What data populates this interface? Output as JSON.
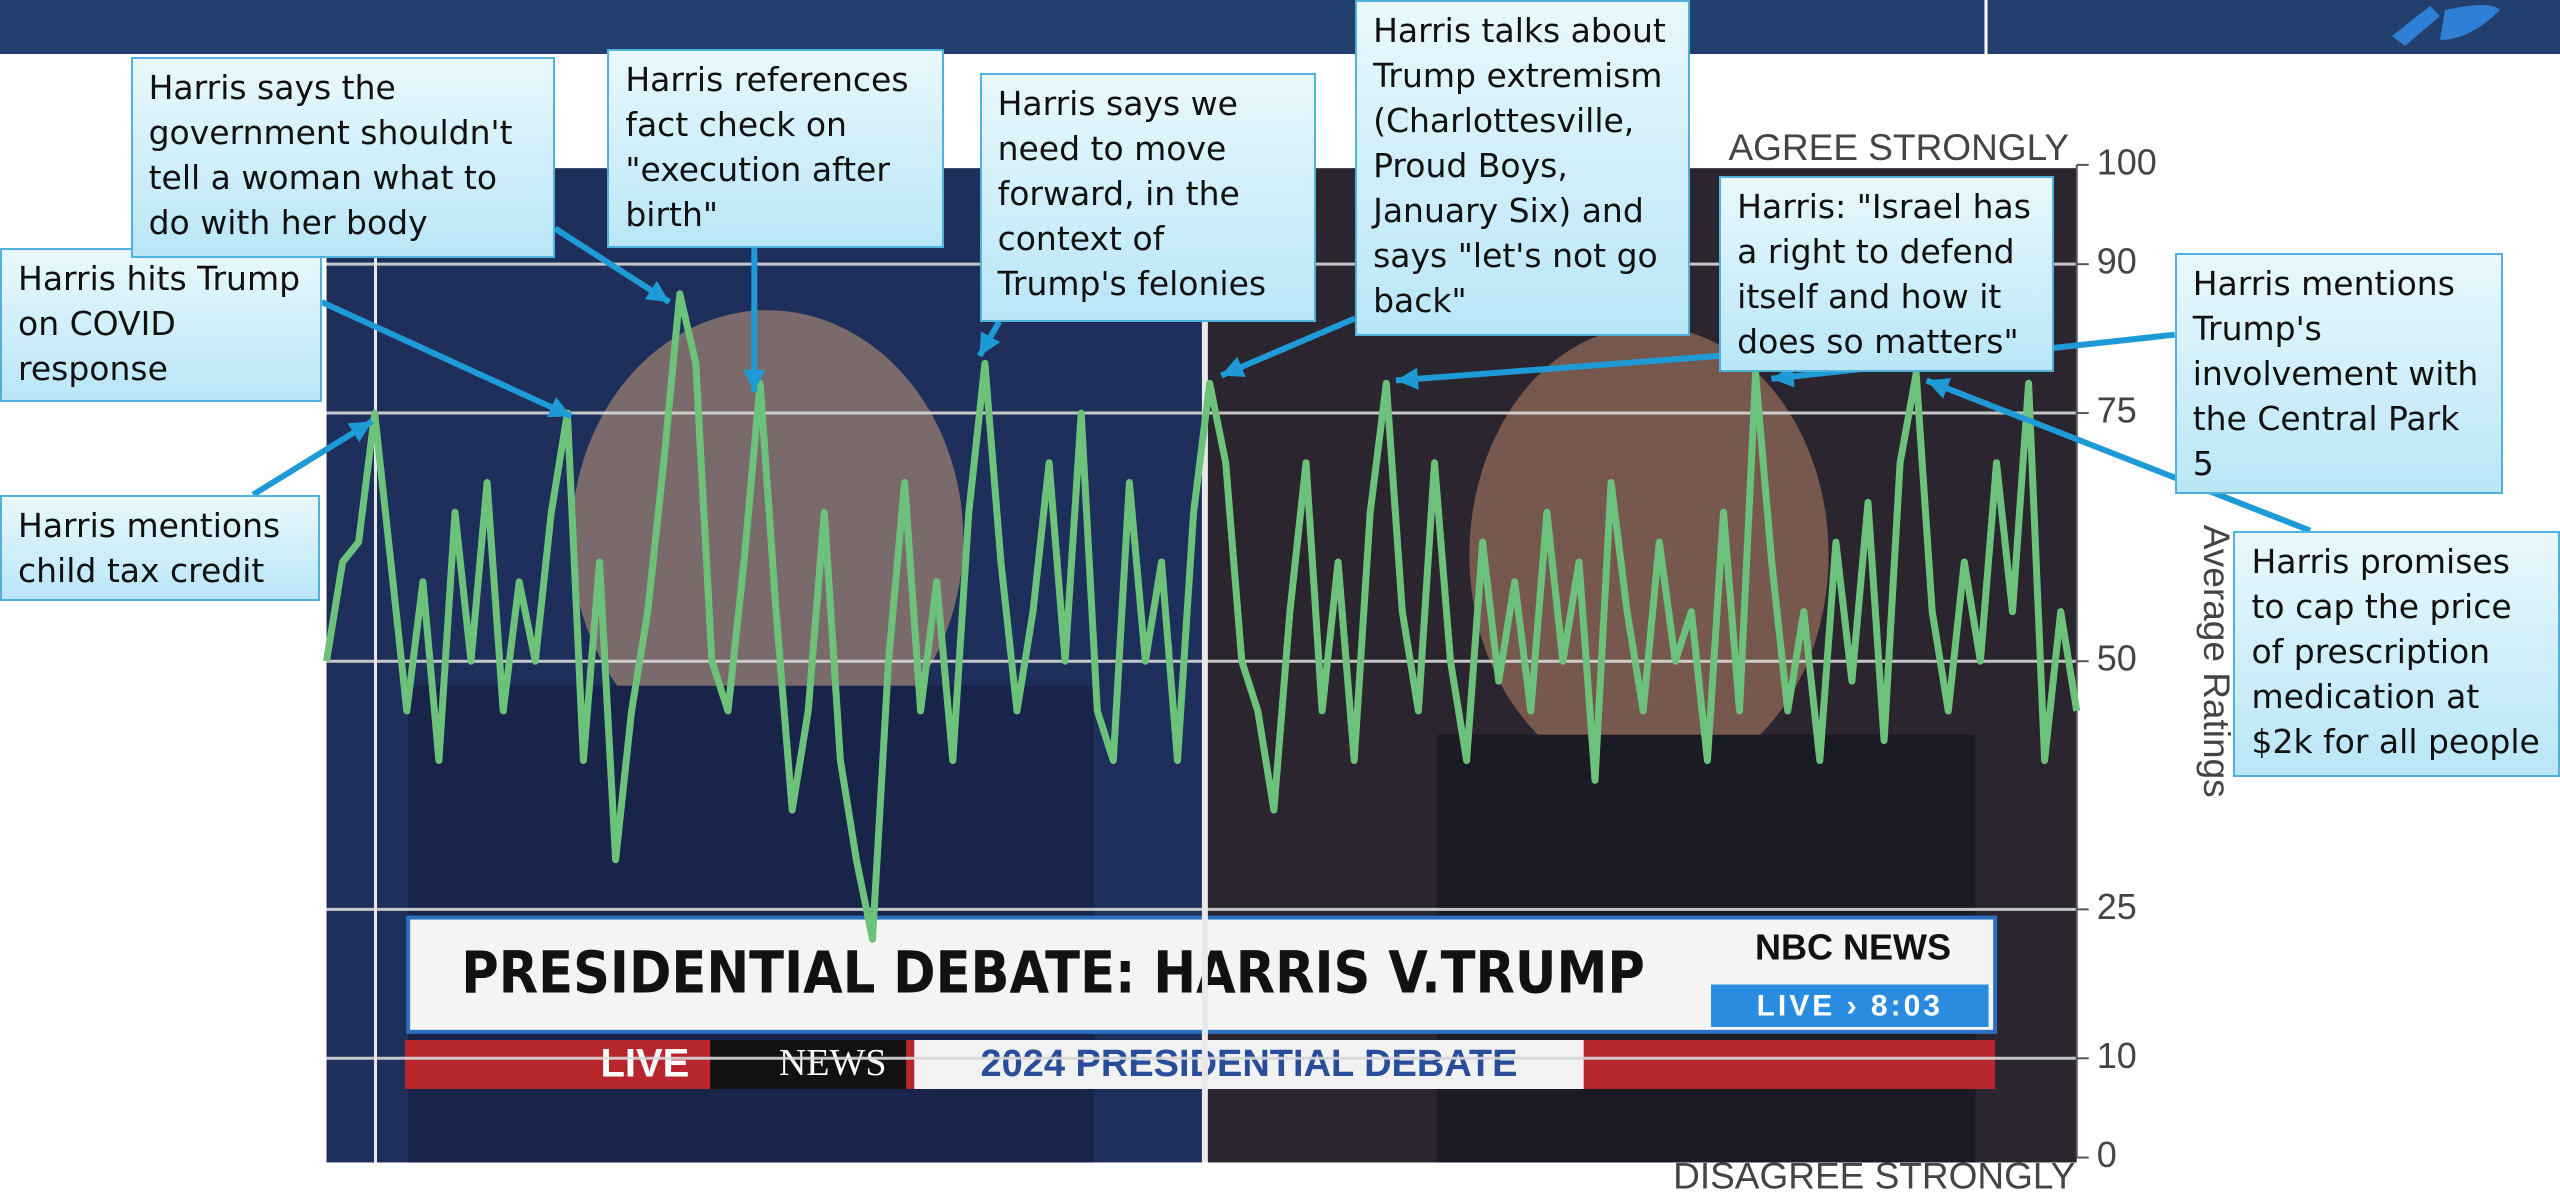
{
  "chart_data": {
    "type": "line",
    "y_label": "Average Ratings",
    "top_label": "AGREE STRONGLY",
    "bottom_label": "DISAGREE STRONGLY",
    "ylim": [
      0,
      100
    ],
    "yticks": [
      0,
      10,
      25,
      50,
      75,
      90,
      100
    ],
    "grid": true,
    "series": [
      {
        "color": "#6cc27a",
        "values": [
          50,
          60,
          62,
          75,
          60,
          45,
          58,
          40,
          65,
          50,
          68,
          45,
          58,
          50,
          65,
          75,
          40,
          60,
          30,
          45,
          55,
          70,
          87,
          80,
          50,
          45,
          60,
          78,
          55,
          35,
          45,
          65,
          40,
          30,
          22,
          50,
          68,
          45,
          58,
          40,
          65,
          80,
          60,
          45,
          55,
          70,
          50,
          75,
          45,
          40,
          68,
          50,
          60,
          40,
          65,
          78,
          70,
          50,
          45,
          35,
          55,
          70,
          45,
          60,
          40,
          65,
          78,
          55,
          45,
          70,
          50,
          40,
          62,
          48,
          58,
          45,
          65,
          50,
          60,
          38,
          68,
          55,
          45,
          62,
          50,
          55,
          40,
          65,
          45,
          79,
          60,
          45,
          55,
          40,
          62,
          48,
          66,
          42,
          70,
          79,
          55,
          45,
          60,
          50,
          70,
          55,
          78,
          40,
          55,
          45
        ]
      }
    ],
    "annotations": [
      "Harris mentions child tax credit",
      "Harris hits Trump on COVID response",
      "Harris says the government shouldn't tell a woman what to do with her body",
      "Harris references fact check on \"execution after birth\"",
      "Harris says we need to move forward, in the context of Trump's felonies",
      "Harris talks about Trump extremism (Charlottesville, Proud Boys, January Six) and says \"let's not go back\"",
      "Harris: \"Israel has a right to defend itself and how it does so matters\"",
      "Harris mentions Trump's involvement with the Central Park 5",
      "Harris promises to cap the price of prescription medication at $2k for all people"
    ],
    "video_overlay": {
      "headline": "PRESIDENTIAL DEBATE: HARRIS V.TRUMP",
      "network": "NBC NEWS",
      "live_time": "LIVE › 8:03",
      "live": "LIVE",
      "news": "NEWS",
      "ticker": "2024 PRESIDENTIAL DEBATE"
    }
  }
}
